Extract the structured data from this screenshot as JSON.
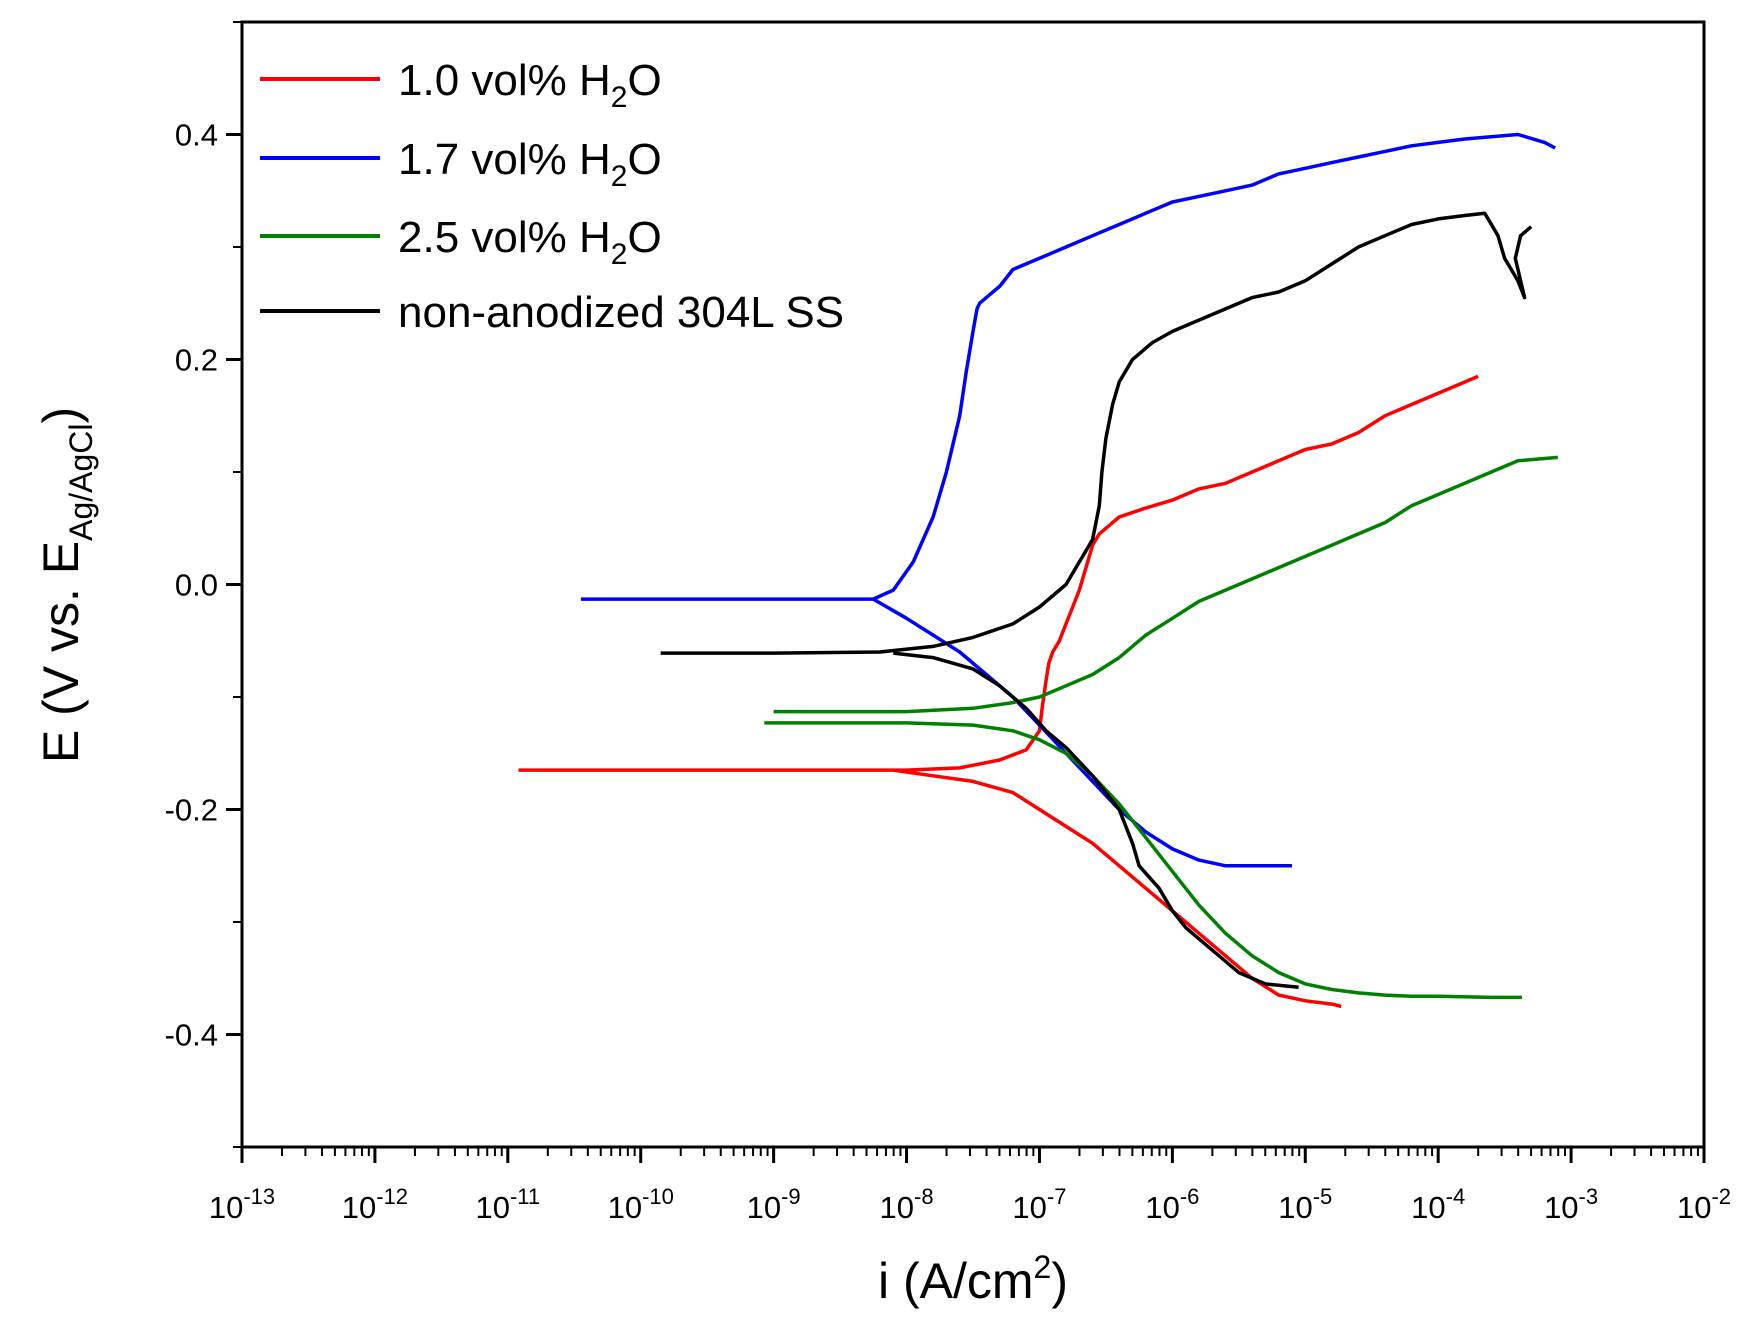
{
  "chart_data": {
    "type": "line",
    "title": "",
    "xlabel": {
      "main": "i (A/cm",
      "sup": "2",
      "end": ")"
    },
    "ylabel": {
      "main": "E (V vs. E",
      "sub": "Ag/AgCl",
      "end": ")"
    },
    "x_scale": "log",
    "xlim_exponent": [
      -13,
      -2
    ],
    "ylim": [
      -0.5,
      0.5
    ],
    "x_ticks": [
      {
        "base": "10",
        "exp": "-13"
      },
      {
        "base": "10",
        "exp": "-12"
      },
      {
        "base": "10",
        "exp": "-11"
      },
      {
        "base": "10",
        "exp": "-10"
      },
      {
        "base": "10",
        "exp": "-9"
      },
      {
        "base": "10",
        "exp": "-8"
      },
      {
        "base": "10",
        "exp": "-7"
      },
      {
        "base": "10",
        "exp": "-6"
      },
      {
        "base": "10",
        "exp": "-5"
      },
      {
        "base": "10",
        "exp": "-4"
      },
      {
        "base": "10",
        "exp": "-3"
      },
      {
        "base": "10",
        "exp": "-2"
      }
    ],
    "y_ticks": [
      {
        "value": 0.4,
        "label": "0.4"
      },
      {
        "value": 0.2,
        "label": "0.2"
      },
      {
        "value": 0.0,
        "label": "0.0"
      },
      {
        "value": -0.2,
        "label": "-0.2"
      },
      {
        "value": -0.4,
        "label": "-0.4"
      }
    ],
    "legend_position": "top-left",
    "grid": false,
    "series": [
      {
        "name": "1.0 vol% H2O",
        "label_main": "1.0 vol% H",
        "label_sub": "2",
        "label_end": "O",
        "color": "#ff0000",
        "points": [
          [
            -10.92,
            -0.165
          ],
          [
            -10,
            -0.165
          ],
          [
            -9,
            -0.165
          ],
          [
            -8,
            -0.165
          ],
          [
            -7.6,
            -0.163
          ],
          [
            -7.3,
            -0.156
          ],
          [
            -7.1,
            -0.147
          ],
          [
            -7.0,
            -0.13
          ],
          [
            -6.98,
            -0.11
          ],
          [
            -6.95,
            -0.085
          ],
          [
            -6.93,
            -0.07
          ],
          [
            -6.9,
            -0.06
          ],
          [
            -6.85,
            -0.05
          ],
          [
            -6.8,
            -0.035
          ],
          [
            -6.75,
            -0.02
          ],
          [
            -6.7,
            -0.005
          ],
          [
            -6.65,
            0.015
          ],
          [
            -6.6,
            0.035
          ],
          [
            -6.55,
            0.045
          ],
          [
            -6.5,
            0.05
          ],
          [
            -6.4,
            0.06
          ],
          [
            -6.2,
            0.068
          ],
          [
            -6.0,
            0.075
          ],
          [
            -5.8,
            0.085
          ],
          [
            -5.6,
            0.09
          ],
          [
            -5.4,
            0.1
          ],
          [
            -5.2,
            0.11
          ],
          [
            -5.0,
            0.12
          ],
          [
            -4.8,
            0.125
          ],
          [
            -4.6,
            0.135
          ],
          [
            -4.4,
            0.15
          ],
          [
            -4.2,
            0.16
          ],
          [
            -4.0,
            0.17
          ],
          [
            -3.8,
            0.18
          ],
          [
            -3.7,
            0.185
          ]
        ],
        "cathodic": [
          [
            -8.1,
            -0.165
          ],
          [
            -7.8,
            -0.17
          ],
          [
            -7.5,
            -0.175
          ],
          [
            -7.2,
            -0.185
          ],
          [
            -7.0,
            -0.2
          ],
          [
            -6.8,
            -0.215
          ],
          [
            -6.6,
            -0.23
          ],
          [
            -6.4,
            -0.25
          ],
          [
            -6.2,
            -0.27
          ],
          [
            -6.0,
            -0.29
          ],
          [
            -5.8,
            -0.31
          ],
          [
            -5.6,
            -0.33
          ],
          [
            -5.4,
            -0.35
          ],
          [
            -5.2,
            -0.365
          ],
          [
            -5.0,
            -0.37
          ],
          [
            -4.8,
            -0.373
          ],
          [
            -4.73,
            -0.375
          ]
        ]
      },
      {
        "name": "1.7 vol% H2O",
        "label_main": "1.7 vol% H",
        "label_sub": "2",
        "label_end": "O",
        "color": "#0000ff",
        "points": [
          [
            -10.45,
            -0.013
          ],
          [
            -9.5,
            -0.013
          ],
          [
            -8.5,
            -0.013
          ],
          [
            -8.25,
            -0.013
          ],
          [
            -8.1,
            -0.005
          ],
          [
            -7.95,
            0.02
          ],
          [
            -7.8,
            0.06
          ],
          [
            -7.7,
            0.1
          ],
          [
            -7.6,
            0.15
          ],
          [
            -7.55,
            0.19
          ],
          [
            -7.5,
            0.225
          ],
          [
            -7.47,
            0.245
          ],
          [
            -7.45,
            0.25
          ],
          [
            -7.4,
            0.255
          ],
          [
            -7.3,
            0.265
          ],
          [
            -7.2,
            0.28
          ],
          [
            -7.0,
            0.29
          ],
          [
            -6.8,
            0.3
          ],
          [
            -6.6,
            0.31
          ],
          [
            -6.4,
            0.32
          ],
          [
            -6.2,
            0.33
          ],
          [
            -6.0,
            0.34
          ],
          [
            -5.8,
            0.345
          ],
          [
            -5.6,
            0.35
          ],
          [
            -5.4,
            0.355
          ],
          [
            -5.2,
            0.365
          ],
          [
            -5.0,
            0.37
          ],
          [
            -4.8,
            0.375
          ],
          [
            -4.6,
            0.38
          ],
          [
            -4.4,
            0.385
          ],
          [
            -4.2,
            0.39
          ],
          [
            -4.0,
            0.393
          ],
          [
            -3.8,
            0.396
          ],
          [
            -3.6,
            0.398
          ],
          [
            -3.4,
            0.4
          ],
          [
            -3.2,
            0.393
          ],
          [
            -3.12,
            0.388
          ]
        ],
        "cathodic": [
          [
            -8.25,
            -0.013
          ],
          [
            -8.0,
            -0.03
          ],
          [
            -7.8,
            -0.045
          ],
          [
            -7.6,
            -0.06
          ],
          [
            -7.4,
            -0.08
          ],
          [
            -7.2,
            -0.1
          ],
          [
            -7.0,
            -0.125
          ],
          [
            -6.8,
            -0.15
          ],
          [
            -6.6,
            -0.175
          ],
          [
            -6.4,
            -0.2
          ],
          [
            -6.2,
            -0.22
          ],
          [
            -6.0,
            -0.235
          ],
          [
            -5.8,
            -0.245
          ],
          [
            -5.6,
            -0.25
          ],
          [
            -5.4,
            -0.25
          ],
          [
            -5.1,
            -0.25
          ]
        ]
      },
      {
        "name": "2.5 vol% H2O",
        "label_main": "2.5 vol% H",
        "label_sub": "2",
        "label_end": "O",
        "color": "#008000",
        "points": [
          [
            -9.0,
            -0.113
          ],
          [
            -8.5,
            -0.113
          ],
          [
            -8.0,
            -0.113
          ],
          [
            -7.5,
            -0.11
          ],
          [
            -7.2,
            -0.105
          ],
          [
            -7.0,
            -0.1
          ],
          [
            -6.8,
            -0.09
          ],
          [
            -6.6,
            -0.08
          ],
          [
            -6.4,
            -0.065
          ],
          [
            -6.2,
            -0.045
          ],
          [
            -6.0,
            -0.03
          ],
          [
            -5.8,
            -0.015
          ],
          [
            -5.6,
            -0.005
          ],
          [
            -5.4,
            0.005
          ],
          [
            -5.2,
            0.015
          ],
          [
            -5.0,
            0.025
          ],
          [
            -4.8,
            0.035
          ],
          [
            -4.6,
            0.045
          ],
          [
            -4.4,
            0.055
          ],
          [
            -4.2,
            0.07
          ],
          [
            -4.0,
            0.08
          ],
          [
            -3.8,
            0.09
          ],
          [
            -3.6,
            0.1
          ],
          [
            -3.4,
            0.11
          ],
          [
            -3.1,
            0.113
          ]
        ],
        "cathodic": [
          [
            -9.07,
            -0.123
          ],
          [
            -8.5,
            -0.123
          ],
          [
            -8.0,
            -0.123
          ],
          [
            -7.5,
            -0.125
          ],
          [
            -7.2,
            -0.13
          ],
          [
            -7.0,
            -0.138
          ],
          [
            -6.8,
            -0.15
          ],
          [
            -6.6,
            -0.17
          ],
          [
            -6.4,
            -0.195
          ],
          [
            -6.2,
            -0.225
          ],
          [
            -6.0,
            -0.255
          ],
          [
            -5.8,
            -0.285
          ],
          [
            -5.6,
            -0.31
          ],
          [
            -5.4,
            -0.33
          ],
          [
            -5.2,
            -0.345
          ],
          [
            -5.0,
            -0.355
          ],
          [
            -4.8,
            -0.36
          ],
          [
            -4.6,
            -0.363
          ],
          [
            -4.4,
            -0.365
          ],
          [
            -4.2,
            -0.366
          ],
          [
            -4.0,
            -0.366
          ],
          [
            -3.6,
            -0.367
          ],
          [
            -3.37,
            -0.367
          ]
        ]
      },
      {
        "name": "non-anodized 304L SS",
        "label_main": "non-anodized 304L SS",
        "label_sub": "",
        "label_end": "",
        "color": "#000000",
        "points": [
          [
            -9.85,
            -0.061
          ],
          [
            -9.0,
            -0.061
          ],
          [
            -8.2,
            -0.06
          ],
          [
            -7.8,
            -0.055
          ],
          [
            -7.5,
            -0.047
          ],
          [
            -7.2,
            -0.035
          ],
          [
            -7.0,
            -0.02
          ],
          [
            -6.8,
            0.0
          ],
          [
            -6.7,
            0.02
          ],
          [
            -6.6,
            0.04
          ],
          [
            -6.55,
            0.07
          ],
          [
            -6.53,
            0.1
          ],
          [
            -6.5,
            0.13
          ],
          [
            -6.45,
            0.16
          ],
          [
            -6.4,
            0.18
          ],
          [
            -6.3,
            0.2
          ],
          [
            -6.15,
            0.215
          ],
          [
            -6.0,
            0.225
          ],
          [
            -5.8,
            0.235
          ],
          [
            -5.6,
            0.245
          ],
          [
            -5.4,
            0.255
          ],
          [
            -5.2,
            0.26
          ],
          [
            -5.0,
            0.27
          ],
          [
            -4.8,
            0.285
          ],
          [
            -4.6,
            0.3
          ],
          [
            -4.4,
            0.31
          ],
          [
            -4.2,
            0.32
          ],
          [
            -4.0,
            0.325
          ],
          [
            -3.8,
            0.328
          ],
          [
            -3.65,
            0.33
          ],
          [
            -3.55,
            0.31
          ],
          [
            -3.5,
            0.29
          ],
          [
            -3.45,
            0.28
          ],
          [
            -3.4,
            0.27
          ],
          [
            -3.35,
            0.255
          ],
          [
            -3.42,
            0.29
          ],
          [
            -3.38,
            0.31
          ],
          [
            -3.3,
            0.318
          ]
        ],
        "cathodic": [
          [
            -8.1,
            -0.061
          ],
          [
            -7.8,
            -0.065
          ],
          [
            -7.5,
            -0.075
          ],
          [
            -7.3,
            -0.09
          ],
          [
            -7.1,
            -0.11
          ],
          [
            -6.95,
            -0.13
          ],
          [
            -6.8,
            -0.145
          ],
          [
            -6.6,
            -0.17
          ],
          [
            -6.4,
            -0.2
          ],
          [
            -6.3,
            -0.23
          ],
          [
            -6.25,
            -0.25
          ],
          [
            -6.1,
            -0.27
          ],
          [
            -6.0,
            -0.29
          ],
          [
            -5.9,
            -0.305
          ],
          [
            -5.7,
            -0.325
          ],
          [
            -5.5,
            -0.345
          ],
          [
            -5.3,
            -0.355
          ],
          [
            -5.05,
            -0.358
          ]
        ]
      }
    ]
  }
}
